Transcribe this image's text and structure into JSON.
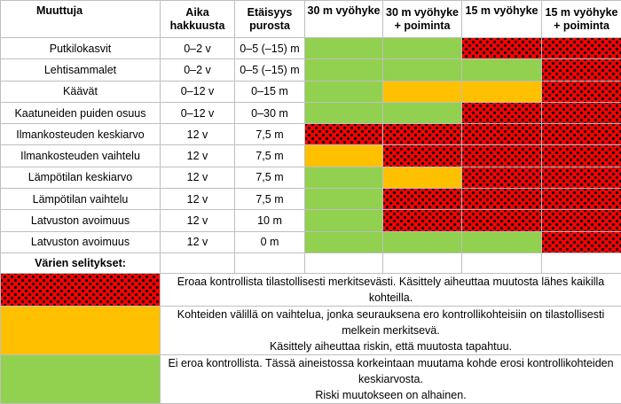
{
  "header": {
    "col_variable": "Muuttuja",
    "col_time": [
      "Aika",
      "hakkuusta"
    ],
    "col_distance": [
      "Etäisyys",
      "purosta"
    ],
    "zones": [
      [
        "30 m vyöhyke",
        ""
      ],
      [
        "30 m vyöhyke",
        "+ poiminta"
      ],
      [
        "15 m vyöhyke",
        ""
      ],
      [
        "15 m vyöhyke",
        "+ poiminta"
      ]
    ]
  },
  "rows": [
    {
      "variable": "Putkilokasvit",
      "time": "0–2 v",
      "distance": "0–5 (–15) m",
      "cells": [
        "green",
        "green",
        "red",
        "red"
      ]
    },
    {
      "variable": "Lehtisammalet",
      "time": "0–2 v",
      "distance": "0–5 (–15) m",
      "cells": [
        "green",
        "green",
        "green",
        "red"
      ]
    },
    {
      "variable": "Käävät",
      "time": "0–12 v",
      "distance": "0–15 m",
      "cells": [
        "green",
        "yellow",
        "yellow",
        "red"
      ]
    },
    {
      "variable": "Kaatuneiden puiden osuus",
      "time": "0–12 v",
      "distance": "0–30 m",
      "cells": [
        "green",
        "green",
        "red",
        "red"
      ]
    },
    {
      "variable": "Ilmankosteuden keskiarvo",
      "time": "12 v",
      "distance": "7,5 m",
      "cells": [
        "red",
        "red",
        "red",
        "red"
      ]
    },
    {
      "variable": "Ilmankosteuden vaihtelu",
      "time": "12 v",
      "distance": "7,5 m",
      "cells": [
        "yellow",
        "red",
        "red",
        "red"
      ]
    },
    {
      "variable": "Lämpötilan keskiarvo",
      "time": "12 v",
      "distance": "7,5 m",
      "cells": [
        "green",
        "yellow",
        "red",
        "red"
      ]
    },
    {
      "variable": "Lämpötilan vaihtelu",
      "time": "12 v",
      "distance": "7,5 m",
      "cells": [
        "green",
        "red",
        "red",
        "red"
      ]
    },
    {
      "variable": "Latvuston avoimuus",
      "time": "12 v",
      "distance": "10 m",
      "cells": [
        "green",
        "red",
        "red",
        "red"
      ]
    },
    {
      "variable": "Latvuston avoimuus",
      "time": "12 v",
      "distance": "0 m",
      "cells": [
        "green",
        "green",
        "green",
        "red"
      ]
    }
  ],
  "legend": {
    "title": "Värien selitykset:",
    "items": [
      {
        "color": "red",
        "lines": [
          "Eroaa kontrollista tilastollisesti merkitsevästi. Käsittely aiheuttaa muutosta lähes kaikilla kohteilla."
        ]
      },
      {
        "color": "yellow",
        "lines": [
          "Kohteiden välillä on vaihtelua, jonka seurauksena ero kontrollikohteisiin on tilastollisesti melkein merkitsevä.",
          "Käsittely aiheuttaa riskin, että muutosta tapahtuu."
        ]
      },
      {
        "color": "green",
        "lines": [
          "Ei eroa kontrollista. Tässä aineistossa korkeintaan muutama kohde erosi kontrollikohteiden keskiarvosta.",
          "Riski muutokseen on alhainen."
        ]
      }
    ]
  },
  "colors": {
    "green": "#92d050",
    "yellow": "#ffc000",
    "red": "#ff0000",
    "dot": "#111111"
  }
}
